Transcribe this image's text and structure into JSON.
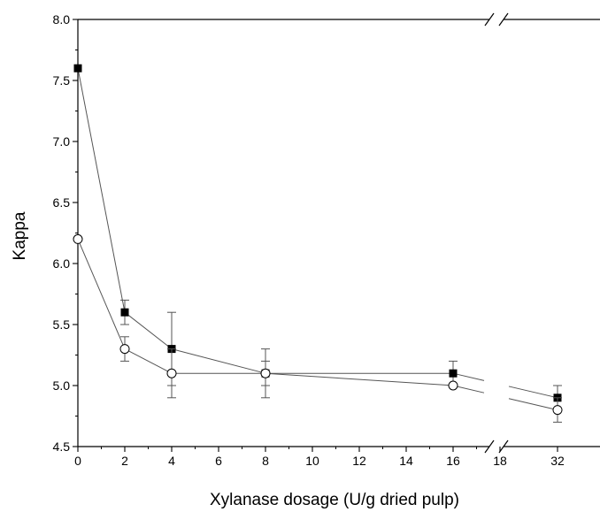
{
  "chart_data": {
    "type": "line",
    "title": "",
    "xlabel": "Xylanase dosage (U/g dried pulp)",
    "ylabel": "Kappa",
    "ylim": [
      4.5,
      8.0
    ],
    "x_tick_labels": [
      "0",
      "2",
      "4",
      "6",
      "8",
      "10",
      "12",
      "14",
      "16",
      "18",
      "32"
    ],
    "y_tick_labels": [
      "4.5",
      "5.0",
      "5.5",
      "6.0",
      "6.5",
      "7.0",
      "7.5",
      "8.0"
    ],
    "axis_break": {
      "between": [
        18,
        32
      ],
      "marker": "//"
    },
    "grid": false,
    "legend": "none",
    "series": [
      {
        "marker": "filled-square",
        "color": "#000000",
        "x": [
          0,
          2,
          4,
          8,
          16,
          32
        ],
        "y": [
          7.6,
          5.6,
          5.3,
          5.1,
          5.1,
          4.9
        ],
        "error": [
          0,
          0.1,
          0.3,
          0.1,
          0.1,
          0.1
        ]
      },
      {
        "marker": "open-circle",
        "color": "#000000",
        "x": [
          0,
          2,
          4,
          8,
          16,
          32
        ],
        "y": [
          6.2,
          5.3,
          5.1,
          5.1,
          5.0,
          4.8
        ],
        "error": [
          0,
          0.1,
          0.2,
          0.2,
          0,
          0.1
        ]
      }
    ]
  }
}
